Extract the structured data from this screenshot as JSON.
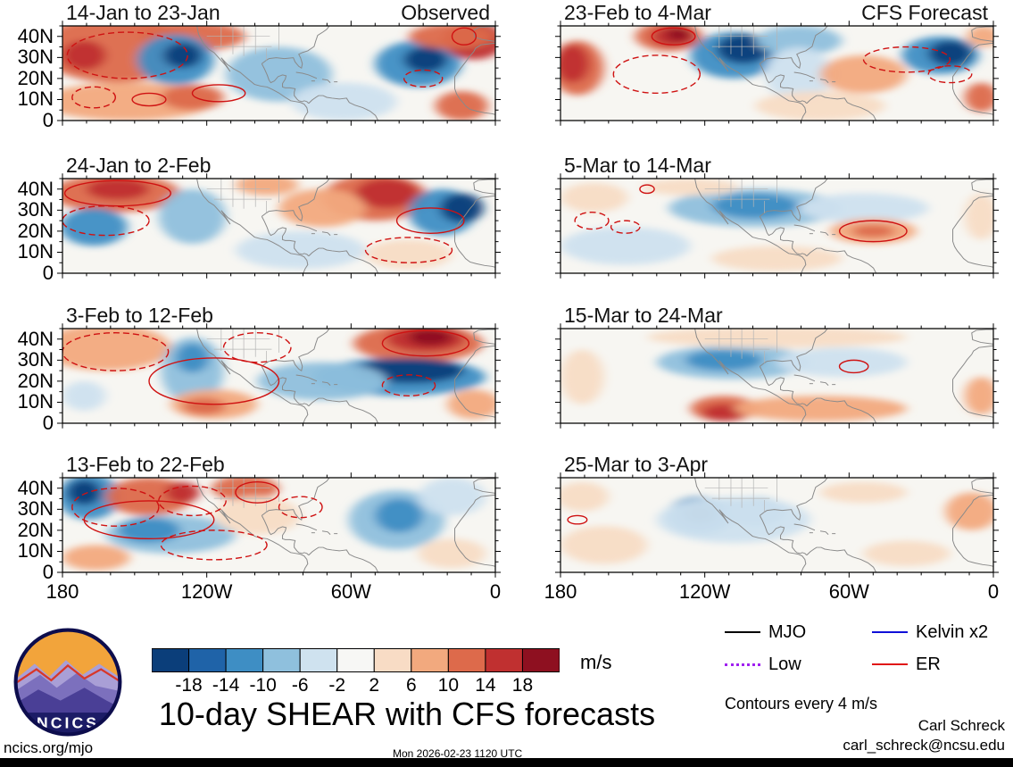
{
  "chart_data": {
    "type": "heatmap",
    "title": "10-day SHEAR with CFS forecasts",
    "units": "m/s",
    "contour_note": "Contours every 4 m/s",
    "column_headings": {
      "left": "Observed",
      "right": "CFS Forecast"
    },
    "axes": {
      "lon_range": [
        -180,
        0
      ],
      "lat_range": [
        0,
        45
      ],
      "x_ticks": [
        {
          "label": "180",
          "lon": -180
        },
        {
          "label": "120W",
          "lon": -120
        },
        {
          "label": "60W",
          "lon": -60
        },
        {
          "label": "0",
          "lon": 0
        }
      ],
      "y_ticks": [
        {
          "label": "40N",
          "lat": 40
        },
        {
          "label": "30N",
          "lat": 30
        },
        {
          "label": "20N",
          "lat": 20
        },
        {
          "label": "10N",
          "lat": 10
        },
        {
          "label": "0",
          "lat": 0
        }
      ]
    },
    "colorbar": {
      "units": "m/s",
      "levels": [
        -18,
        -14,
        -10,
        -6,
        -2,
        2,
        6,
        10,
        14,
        18
      ],
      "colors": [
        "#0b3e7a",
        "#1f63a8",
        "#3e8ec4",
        "#8fc0dd",
        "#cfe2ef",
        "#f7f7f5",
        "#f8dcc5",
        "#f2a97e",
        "#dd6a4b",
        "#c03030",
        "#8e1020"
      ]
    },
    "feature_format": [
      "lon_deg",
      "lat_deg",
      "lon_radius_deg",
      "lat_radius_deg",
      "shear_anomaly_ms"
    ],
    "contour_format": [
      "lon_deg",
      "lat_deg",
      "lon_radius_deg",
      "lat_radius_deg",
      "style_s_solid_d_dashed"
    ],
    "panels": [
      {
        "title": "14-Jan to 23-Jan",
        "corner_label": "Observed",
        "column": "observed",
        "features": [
          [
            -158,
            34,
            32,
            16,
            12
          ],
          [
            -171,
            31,
            9,
            7,
            17
          ],
          [
            -126,
            40,
            22,
            7,
            12
          ],
          [
            -133,
            29,
            16,
            12,
            -12
          ],
          [
            -130,
            31,
            8,
            6,
            -20
          ],
          [
            -90,
            22,
            22,
            13,
            -7
          ],
          [
            -153,
            9,
            36,
            9,
            7
          ],
          [
            -126,
            11,
            13,
            6,
            12
          ],
          [
            -32,
            27,
            18,
            11,
            -12
          ],
          [
            -29,
            29,
            9,
            6,
            -20
          ],
          [
            -9,
            38,
            13,
            9,
            17
          ],
          [
            -18,
            40,
            18,
            6,
            12
          ],
          [
            -14,
            7,
            11,
            7,
            12
          ],
          [
            -63,
            9,
            22,
            9,
            -3
          ]
        ],
        "contours": [
          [
            -153,
            31,
            25,
            11,
            "d"
          ],
          [
            -167,
            11,
            9,
            5,
            "d"
          ],
          [
            -144,
            10,
            7,
            3,
            "s"
          ],
          [
            -115,
            13,
            11,
            4,
            "s"
          ],
          [
            -13,
            40,
            5,
            4,
            "s"
          ],
          [
            -30,
            20,
            8,
            4,
            "d"
          ]
        ]
      },
      {
        "title": "24-Jan to 2-Feb",
        "corner_label": null,
        "column": "observed",
        "features": [
          [
            -158,
            38,
            27,
            9,
            12
          ],
          [
            -157,
            40,
            13,
            5,
            17
          ],
          [
            -167,
            22,
            14,
            9,
            -12
          ],
          [
            -126,
            27,
            14,
            13,
            -7
          ],
          [
            -50,
            36,
            22,
            11,
            12
          ],
          [
            -45,
            38,
            13,
            7,
            17
          ],
          [
            -72,
            31,
            18,
            9,
            7
          ],
          [
            -22,
            29,
            14,
            11,
            -12
          ],
          [
            -14,
            31,
            9,
            7,
            -20
          ],
          [
            -36,
            9,
            18,
            7,
            3
          ],
          [
            -81,
            11,
            27,
            9,
            -3
          ],
          [
            -95,
            42,
            13,
            5,
            7
          ]
        ],
        "contours": [
          [
            -157,
            38,
            22,
            6,
            "s"
          ],
          [
            -162,
            25,
            18,
            7,
            "d"
          ],
          [
            -27,
            25,
            14,
            6,
            "s"
          ],
          [
            -36,
            11,
            18,
            6,
            "d"
          ]
        ]
      },
      {
        "title": "3-Feb to 12-Feb",
        "corner_label": null,
        "column": "observed",
        "features": [
          [
            -162,
            36,
            27,
            11,
            7
          ],
          [
            -126,
            25,
            13,
            16,
            -7
          ],
          [
            -126,
            31,
            7,
            7,
            -12
          ],
          [
            -32,
            38,
            27,
            9,
            12
          ],
          [
            -29,
            40,
            16,
            6,
            17
          ],
          [
            -27,
            41,
            9,
            4,
            22
          ],
          [
            -40,
            22,
            36,
            9,
            -12
          ],
          [
            -36,
            25,
            23,
            6,
            -20
          ],
          [
            -72,
            20,
            27,
            9,
            -7
          ],
          [
            -117,
            9,
            18,
            7,
            7
          ],
          [
            -121,
            8,
            9,
            4,
            12
          ],
          [
            -9,
            9,
            11,
            7,
            7
          ],
          [
            -171,
            13,
            9,
            7,
            -3
          ]
        ],
        "contours": [
          [
            -158,
            34,
            22,
            9,
            "d"
          ],
          [
            -99,
            36,
            14,
            7,
            "d"
          ],
          [
            -117,
            20,
            27,
            11,
            "s"
          ],
          [
            -36,
            18,
            11,
            5,
            "d"
          ],
          [
            -29,
            38,
            18,
            6,
            "s"
          ]
        ]
      },
      {
        "title": "13-Feb to 22-Feb",
        "corner_label": null,
        "column": "observed",
        "features": [
          [
            -169,
            36,
            13,
            11,
            -12
          ],
          [
            -171,
            38,
            7,
            6,
            -20
          ],
          [
            -144,
            36,
            18,
            9,
            12
          ],
          [
            -130,
            38,
            7,
            5,
            17
          ],
          [
            -135,
            18,
            27,
            9,
            -7
          ],
          [
            -144,
            20,
            13,
            6,
            -12
          ],
          [
            -104,
            40,
            14,
            6,
            12
          ],
          [
            -99,
            27,
            18,
            9,
            3
          ],
          [
            -41,
            25,
            20,
            14,
            -7
          ],
          [
            -40,
            27,
            10,
            8,
            -12
          ],
          [
            -18,
            36,
            14,
            9,
            -3
          ],
          [
            -18,
            9,
            14,
            7,
            3
          ],
          [
            -166,
            7,
            14,
            6,
            7
          ]
        ],
        "contours": [
          [
            -158,
            31,
            18,
            9,
            "d"
          ],
          [
            -126,
            34,
            14,
            7,
            "d"
          ],
          [
            -144,
            25,
            27,
            9,
            "s"
          ],
          [
            -117,
            13,
            22,
            7,
            "d"
          ],
          [
            -99,
            38,
            9,
            5,
            "s"
          ],
          [
            -81,
            31,
            9,
            5,
            "d"
          ]
        ]
      },
      {
        "title": "23-Feb to 4-Mar",
        "corner_label": "CFS Forecast",
        "column": "forecast",
        "features": [
          [
            -173,
            25,
            11,
            13,
            12
          ],
          [
            -175,
            27,
            7,
            9,
            17
          ],
          [
            -135,
            40,
            14,
            7,
            12
          ],
          [
            -133,
            40,
            9,
            5,
            17
          ],
          [
            -131,
            41,
            5,
            3,
            22
          ],
          [
            -108,
            31,
            18,
            11,
            -12
          ],
          [
            -104,
            34,
            11,
            7,
            -20
          ],
          [
            -81,
            38,
            18,
            7,
            -7
          ],
          [
            -81,
            22,
            14,
            13,
            -3
          ],
          [
            -54,
            22,
            18,
            9,
            7
          ],
          [
            -22,
            31,
            16,
            9,
            -12
          ],
          [
            -18,
            32,
            9,
            6,
            -20
          ],
          [
            -5,
            11,
            7,
            7,
            12
          ],
          [
            -72,
            7,
            27,
            7,
            3
          ],
          [
            -4,
            40,
            7,
            5,
            7
          ]
        ],
        "contours": [
          [
            -140,
            22,
            18,
            9,
            "d"
          ],
          [
            -133,
            40,
            9,
            4,
            "s"
          ],
          [
            -36,
            29,
            18,
            6,
            "d"
          ],
          [
            -18,
            22,
            9,
            4,
            "d"
          ]
        ]
      },
      {
        "title": "5-Mar to 14-Mar",
        "corner_label": null,
        "column": "forecast",
        "features": [
          [
            -99,
            31,
            36,
            9,
            -7
          ],
          [
            -99,
            32,
            18,
            6,
            -12
          ],
          [
            -54,
            31,
            27,
            7,
            -3
          ],
          [
            -50,
            20,
            18,
            6,
            7
          ],
          [
            -50,
            20,
            9,
            3,
            12
          ],
          [
            -153,
            13,
            27,
            9,
            -3
          ],
          [
            -166,
            36,
            14,
            7,
            3
          ],
          [
            -5,
            27,
            7,
            11,
            3
          ],
          [
            -90,
            7,
            27,
            6,
            3
          ],
          [
            -126,
            41,
            20,
            4,
            3
          ]
        ],
        "contours": [
          [
            -144,
            40,
            3,
            2,
            "s"
          ],
          [
            -167,
            25,
            7,
            4,
            "d"
          ],
          [
            -153,
            22,
            6,
            3,
            "d"
          ],
          [
            -50,
            20,
            14,
            5,
            "s"
          ]
        ]
      },
      {
        "title": "15-Mar to 24-Mar",
        "corner_label": null,
        "column": "forecast",
        "features": [
          [
            -108,
            29,
            32,
            8,
            -7
          ],
          [
            -112,
            30,
            16,
            5,
            -12
          ],
          [
            -63,
            29,
            27,
            7,
            -3
          ],
          [
            -112,
            7,
            14,
            6,
            12
          ],
          [
            -112,
            5,
            9,
            4,
            17
          ],
          [
            -72,
            7,
            36,
            6,
            7
          ],
          [
            -5,
            13,
            7,
            9,
            7
          ],
          [
            -90,
            41,
            54,
            5,
            3
          ],
          [
            -171,
            22,
            9,
            13,
            3
          ]
        ],
        "contours": [
          [
            -58,
            27,
            6,
            3,
            "s"
          ]
        ]
      },
      {
        "title": "25-Mar to 3-Apr",
        "corner_label": null,
        "column": "forecast",
        "features": [
          [
            -122,
            27,
            14,
            9,
            -12
          ],
          [
            -122,
            28,
            7,
            5,
            -20
          ],
          [
            -99,
            29,
            13,
            7,
            -7
          ],
          [
            -108,
            25,
            32,
            11,
            -3
          ],
          [
            -162,
            13,
            18,
            9,
            3
          ],
          [
            -171,
            36,
            11,
            7,
            3
          ],
          [
            -9,
            29,
            11,
            9,
            7
          ],
          [
            -36,
            9,
            18,
            6,
            3
          ],
          [
            -54,
            38,
            18,
            5,
            3
          ]
        ],
        "contours": [
          [
            -173,
            25,
            4,
            2,
            "s"
          ]
        ]
      }
    ]
  },
  "legend": {
    "items": [
      {
        "label": "MJO",
        "color": "#000000",
        "style": "solid"
      },
      {
        "label": "Kelvin x2",
        "color": "#1010d8",
        "style": "solid"
      },
      {
        "label": "Low",
        "color": "#a020f0",
        "style": "dotted"
      },
      {
        "label": "ER",
        "color": "#e01818",
        "style": "solid"
      }
    ]
  },
  "branding": {
    "logo_text": "NCICS"
  },
  "footer": {
    "site": "ncics.org/mjo",
    "timestamp": "Mon 2026-02-23 1120 UTC",
    "author": "Carl Schreck",
    "email": "carl_schreck@ncsu.edu"
  }
}
